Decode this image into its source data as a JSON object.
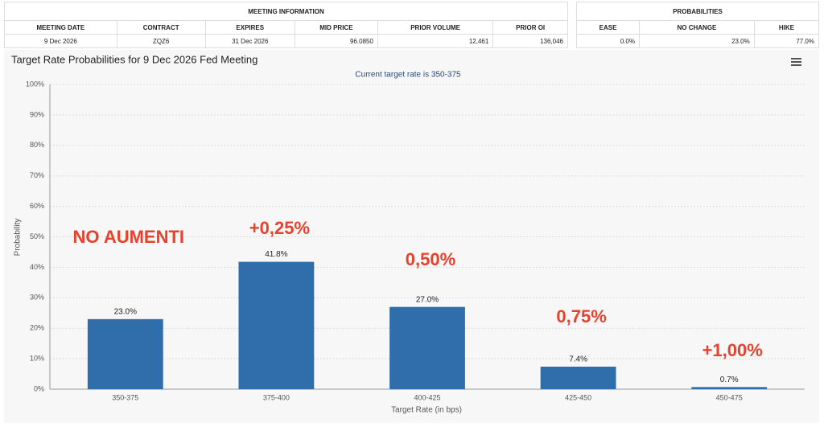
{
  "meeting_info": {
    "title": "MEETING INFORMATION",
    "headers": [
      "MEETING DATE",
      "CONTRACT",
      "EXPIRES",
      "MID PRICE",
      "PRIOR VOLUME",
      "PRIOR OI"
    ],
    "row": [
      "9 Dec 2026",
      "ZQZ6",
      "31 Dec 2026",
      "96.0850",
      "12,461",
      "136,046"
    ]
  },
  "probabilities": {
    "title": "PROBABILITIES",
    "headers": [
      "EASE",
      "NO CHANGE",
      "HIKE"
    ],
    "row": [
      "0.0%",
      "23.0%",
      "77.0%"
    ]
  },
  "chart_data": {
    "type": "bar",
    "title": "Target Rate Probabilities for 9 Dec 2026 Fed Meeting",
    "subtitle": "Current target rate is 350-375",
    "y_label": "Probability",
    "x_label": "Target Rate (in bps)",
    "categories": [
      "350-375",
      "375-400",
      "400-425",
      "425-450",
      "450-475"
    ],
    "values": [
      23.0,
      41.8,
      27.0,
      7.4,
      0.7
    ],
    "value_labels": [
      "23.0%",
      "41.8%",
      "27.0%",
      "7.4%",
      "0.7%"
    ],
    "color": "#2f6eab",
    "ylim": [
      0,
      100
    ],
    "yticks": [
      {
        "value": 0,
        "label": "0%"
      },
      {
        "value": 10,
        "label": "10%"
      },
      {
        "value": 20,
        "label": "20%"
      },
      {
        "value": 30,
        "label": "30%"
      },
      {
        "value": 40,
        "label": "40%"
      },
      {
        "value": 50,
        "label": "50%"
      },
      {
        "value": 60,
        "label": "60%"
      },
      {
        "value": 70,
        "label": "70%"
      },
      {
        "value": 80,
        "label": "80%"
      },
      {
        "value": 90,
        "label": "90%"
      },
      {
        "value": 100,
        "label": "100%"
      }
    ],
    "grid": true,
    "annotations": [
      "NO AUMENTI",
      "+0,25%",
      "0,50%",
      "0,75%",
      "+1,00%"
    ]
  }
}
